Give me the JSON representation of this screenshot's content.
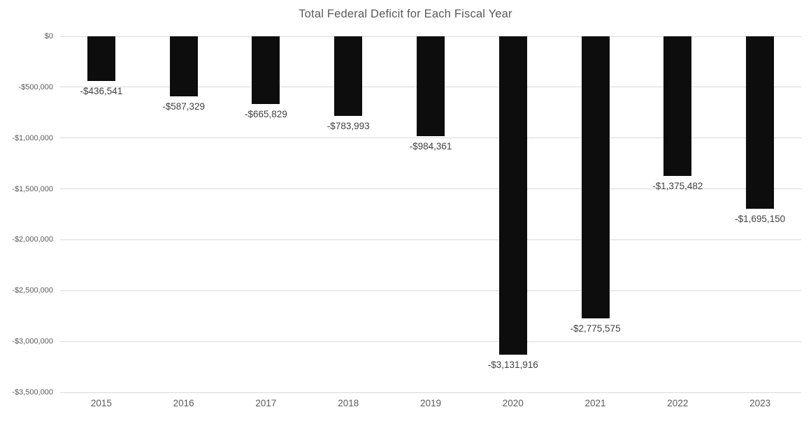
{
  "chart_data": {
    "type": "bar",
    "title": "Total Federal Deficit for Each Fiscal Year",
    "categories": [
      "2015",
      "2016",
      "2017",
      "2018",
      "2019",
      "2020",
      "2021",
      "2022",
      "2023"
    ],
    "values": [
      -436541,
      -587329,
      -665829,
      -783993,
      -984361,
      -3131916,
      -2775575,
      -1375482,
      -1695150
    ],
    "data_labels": [
      "-$436,541",
      "-$587,329",
      "-$665,829",
      "-$783,993",
      "-$984,361",
      "-$3,131,916",
      "-$2,775,575",
      "-$1,375,482",
      "-$1,695,150"
    ],
    "xlabel": "",
    "ylabel": "",
    "ylim": [
      -3500000,
      0
    ],
    "y_tick_values": [
      0,
      -500000,
      -1000000,
      -1500000,
      -2000000,
      -2500000,
      -3000000,
      -3500000
    ],
    "y_tick_labels": [
      "$0",
      "-$500,000",
      "-$1,000,000",
      "-$1,500,000",
      "-$2,000,000",
      "-$2,500,000",
      "-$3,000,000",
      "-$3,500,000"
    ],
    "grid": "horizontal",
    "legend": "none",
    "colors": {
      "bar": "#0d0d0d",
      "gridline": "#d9d9d9",
      "title": "#595959",
      "axis_labels": "#595959",
      "data_labels": "#404040",
      "background": "#ffffff"
    }
  }
}
